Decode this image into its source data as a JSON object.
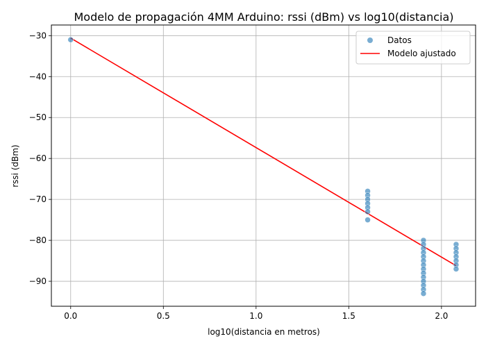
{
  "chart_data": {
    "type": "scatter",
    "title": "Modelo de propagación 4MM Arduino: rssi (dBm) vs log10(distancia)",
    "xlabel": "log10(distancia en metros)",
    "ylabel": "rssi (dBm)",
    "xlim": [
      -0.104,
      2.184
    ],
    "ylim": [
      -96.1,
      -27.4
    ],
    "xticks": [
      0.0,
      0.5,
      1.0,
      1.5,
      2.0
    ],
    "xtick_labels": [
      "0.0",
      "0.5",
      "1.0",
      "1.5",
      "2.0"
    ],
    "yticks": [
      -90,
      -80,
      -70,
      -60,
      -50,
      -40,
      -30
    ],
    "ytick_labels": [
      "−90",
      "−80",
      "−70",
      "−60",
      "−50",
      "−40",
      "−30"
    ],
    "grid": true,
    "legend_position": "top-right",
    "series": [
      {
        "name": "Datos",
        "kind": "scatter",
        "color": "#1f77b4",
        "points": [
          [
            0.0,
            -31
          ],
          [
            1.602,
            -68
          ],
          [
            1.602,
            -69
          ],
          [
            1.602,
            -70
          ],
          [
            1.602,
            -71
          ],
          [
            1.602,
            -72
          ],
          [
            1.602,
            -73
          ],
          [
            1.602,
            -75
          ],
          [
            1.903,
            -80
          ],
          [
            1.903,
            -81
          ],
          [
            1.903,
            -82
          ],
          [
            1.903,
            -83
          ],
          [
            1.903,
            -84
          ],
          [
            1.903,
            -85
          ],
          [
            1.903,
            -86
          ],
          [
            1.903,
            -87
          ],
          [
            1.903,
            -88
          ],
          [
            1.903,
            -89
          ],
          [
            1.903,
            -90
          ],
          [
            1.903,
            -91
          ],
          [
            1.903,
            -92
          ],
          [
            1.903,
            -93
          ],
          [
            2.079,
            -81
          ],
          [
            2.079,
            -82
          ],
          [
            2.079,
            -83
          ],
          [
            2.079,
            -84
          ],
          [
            2.079,
            -85
          ],
          [
            2.079,
            -86
          ],
          [
            2.079,
            -87
          ]
        ]
      },
      {
        "name": "Modelo ajustado",
        "kind": "line",
        "color": "#ff0000",
        "points": [
          [
            0.0,
            -30.6
          ],
          [
            2.079,
            -86.2
          ]
        ]
      }
    ]
  }
}
